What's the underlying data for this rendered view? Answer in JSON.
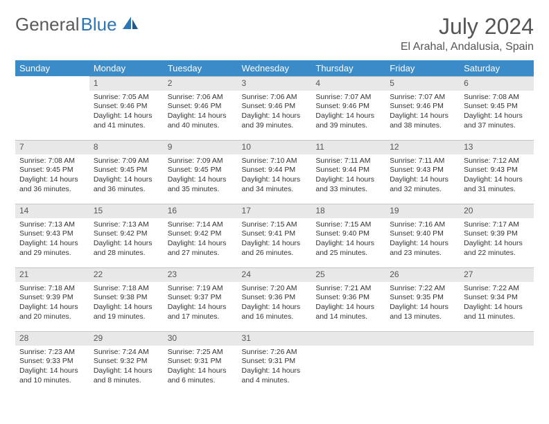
{
  "brand": {
    "part1": "General",
    "part2": "Blue"
  },
  "title": "July 2024",
  "location": "El Arahal, Andalusia, Spain",
  "colors": {
    "header_bg": "#3b8bc9",
    "daynum_bg": "#e8e8e8",
    "text": "#333333",
    "border": "#c5c5c5",
    "logo_gray": "#5a5a5a",
    "logo_blue": "#2e75b6"
  },
  "weekdays": [
    "Sunday",
    "Monday",
    "Tuesday",
    "Wednesday",
    "Thursday",
    "Friday",
    "Saturday"
  ],
  "first_weekday_index": 1,
  "days": [
    {
      "n": 1,
      "sr": "7:05 AM",
      "ss": "9:46 PM",
      "dl": "14 hours and 41 minutes."
    },
    {
      "n": 2,
      "sr": "7:06 AM",
      "ss": "9:46 PM",
      "dl": "14 hours and 40 minutes."
    },
    {
      "n": 3,
      "sr": "7:06 AM",
      "ss": "9:46 PM",
      "dl": "14 hours and 39 minutes."
    },
    {
      "n": 4,
      "sr": "7:07 AM",
      "ss": "9:46 PM",
      "dl": "14 hours and 39 minutes."
    },
    {
      "n": 5,
      "sr": "7:07 AM",
      "ss": "9:46 PM",
      "dl": "14 hours and 38 minutes."
    },
    {
      "n": 6,
      "sr": "7:08 AM",
      "ss": "9:45 PM",
      "dl": "14 hours and 37 minutes."
    },
    {
      "n": 7,
      "sr": "7:08 AM",
      "ss": "9:45 PM",
      "dl": "14 hours and 36 minutes."
    },
    {
      "n": 8,
      "sr": "7:09 AM",
      "ss": "9:45 PM",
      "dl": "14 hours and 36 minutes."
    },
    {
      "n": 9,
      "sr": "7:09 AM",
      "ss": "9:45 PM",
      "dl": "14 hours and 35 minutes."
    },
    {
      "n": 10,
      "sr": "7:10 AM",
      "ss": "9:44 PM",
      "dl": "14 hours and 34 minutes."
    },
    {
      "n": 11,
      "sr": "7:11 AM",
      "ss": "9:44 PM",
      "dl": "14 hours and 33 minutes."
    },
    {
      "n": 12,
      "sr": "7:11 AM",
      "ss": "9:43 PM",
      "dl": "14 hours and 32 minutes."
    },
    {
      "n": 13,
      "sr": "7:12 AM",
      "ss": "9:43 PM",
      "dl": "14 hours and 31 minutes."
    },
    {
      "n": 14,
      "sr": "7:13 AM",
      "ss": "9:43 PM",
      "dl": "14 hours and 29 minutes."
    },
    {
      "n": 15,
      "sr": "7:13 AM",
      "ss": "9:42 PM",
      "dl": "14 hours and 28 minutes."
    },
    {
      "n": 16,
      "sr": "7:14 AM",
      "ss": "9:42 PM",
      "dl": "14 hours and 27 minutes."
    },
    {
      "n": 17,
      "sr": "7:15 AM",
      "ss": "9:41 PM",
      "dl": "14 hours and 26 minutes."
    },
    {
      "n": 18,
      "sr": "7:15 AM",
      "ss": "9:40 PM",
      "dl": "14 hours and 25 minutes."
    },
    {
      "n": 19,
      "sr": "7:16 AM",
      "ss": "9:40 PM",
      "dl": "14 hours and 23 minutes."
    },
    {
      "n": 20,
      "sr": "7:17 AM",
      "ss": "9:39 PM",
      "dl": "14 hours and 22 minutes."
    },
    {
      "n": 21,
      "sr": "7:18 AM",
      "ss": "9:39 PM",
      "dl": "14 hours and 20 minutes."
    },
    {
      "n": 22,
      "sr": "7:18 AM",
      "ss": "9:38 PM",
      "dl": "14 hours and 19 minutes."
    },
    {
      "n": 23,
      "sr": "7:19 AM",
      "ss": "9:37 PM",
      "dl": "14 hours and 17 minutes."
    },
    {
      "n": 24,
      "sr": "7:20 AM",
      "ss": "9:36 PM",
      "dl": "14 hours and 16 minutes."
    },
    {
      "n": 25,
      "sr": "7:21 AM",
      "ss": "9:36 PM",
      "dl": "14 hours and 14 minutes."
    },
    {
      "n": 26,
      "sr": "7:22 AM",
      "ss": "9:35 PM",
      "dl": "14 hours and 13 minutes."
    },
    {
      "n": 27,
      "sr": "7:22 AM",
      "ss": "9:34 PM",
      "dl": "14 hours and 11 minutes."
    },
    {
      "n": 28,
      "sr": "7:23 AM",
      "ss": "9:33 PM",
      "dl": "14 hours and 10 minutes."
    },
    {
      "n": 29,
      "sr": "7:24 AM",
      "ss": "9:32 PM",
      "dl": "14 hours and 8 minutes."
    },
    {
      "n": 30,
      "sr": "7:25 AM",
      "ss": "9:31 PM",
      "dl": "14 hours and 6 minutes."
    },
    {
      "n": 31,
      "sr": "7:26 AM",
      "ss": "9:31 PM",
      "dl": "14 hours and 4 minutes."
    }
  ],
  "labels": {
    "sunrise": "Sunrise:",
    "sunset": "Sunset:",
    "daylight": "Daylight:"
  }
}
